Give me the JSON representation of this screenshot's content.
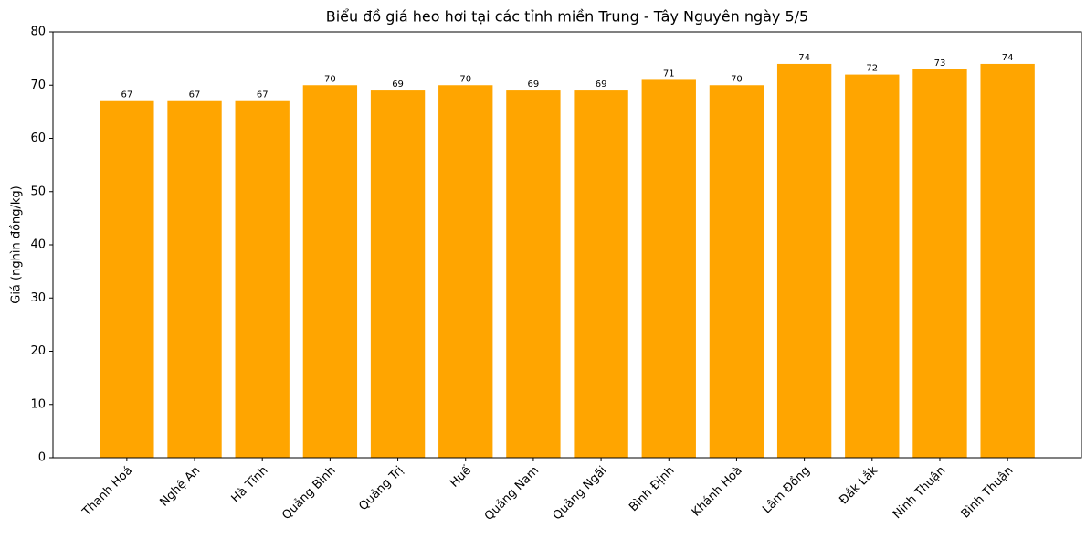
{
  "chart_data": {
    "type": "bar",
    "title": "Biểu đồ giá heo hơi tại các tỉnh miền Trung - Tây Nguyên ngày 5/5",
    "y_label": "Giá (nghìn đồng/kg)",
    "categories": [
      "Thanh Hoá",
      "Nghệ An",
      "Hà Tĩnh",
      "Quảng Bình",
      "Quảng Trị",
      "Huế",
      "Quảng Nam",
      "Quảng Ngãi",
      "Bình Định",
      "Khánh Hoà",
      "Lâm Đồng",
      "Đắk Lắk",
      "Ninh Thuận",
      "Bình Thuận"
    ],
    "values": [
      67,
      67,
      67,
      70,
      69,
      70,
      69,
      69,
      71,
      70,
      74,
      72,
      73,
      74
    ],
    "color": "#ffa500",
    "ylim": [
      0,
      80
    ],
    "yticks": [
      0,
      10,
      20,
      30,
      40,
      50,
      60,
      70,
      80
    ],
    "grid": false
  }
}
